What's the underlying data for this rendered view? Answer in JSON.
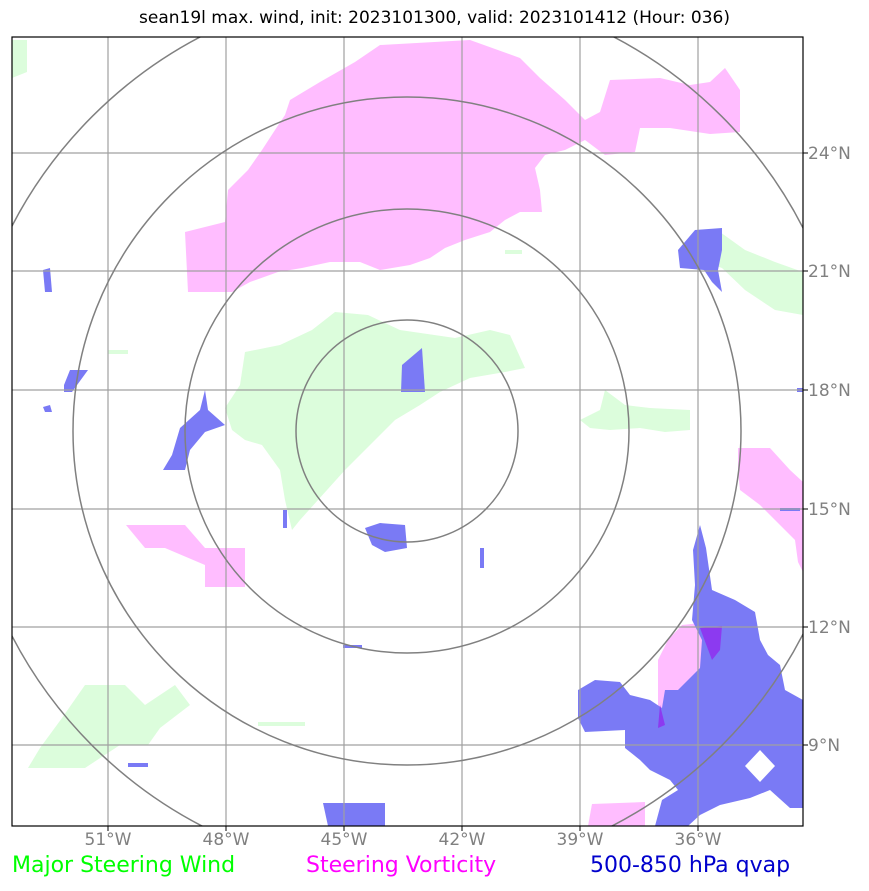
{
  "title": "sean19l max. wind, init: 2023101300, valid: 2023101412 (Hour: 036)",
  "lon_ticks": [
    "51°W",
    "48°W",
    "45°W",
    "42°W",
    "39°W",
    "36°W"
  ],
  "lat_ticks": [
    "24°N",
    "21°N",
    "18°N",
    "15°N",
    "12°N",
    "9°N"
  ],
  "legend": [
    {
      "label": "Major Steering Wind",
      "color": "#00ff00"
    },
    {
      "label": "Steering Vorticity",
      "color": "#ff00ff"
    },
    {
      "label": "500-850 hPa qvap",
      "color": "#0000cc"
    }
  ],
  "colors": {
    "wind_fill": "#dcfddc",
    "vorticity_fill": "#ffbdff",
    "qvap_fill": "#7a7af5",
    "grid": "#a0a0a0",
    "rings": "#808080"
  }
}
